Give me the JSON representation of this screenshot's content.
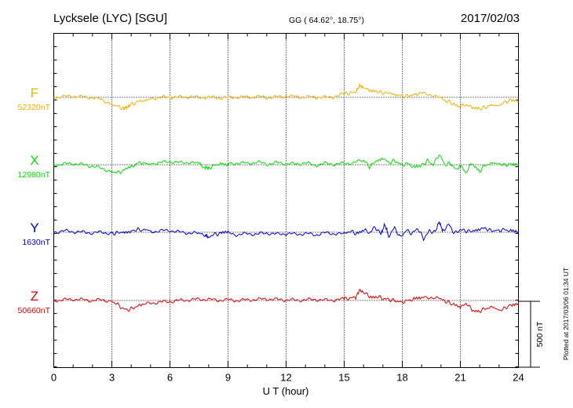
{
  "header": {
    "station": "Lycksele (LYC)  [SGU]",
    "coords": "GG ( 64.62°,  18.75°)",
    "date": "2017/02/03"
  },
  "footer": {
    "plotted_note": "Plotted at 2017/03/06 01:34 UT"
  },
  "scale_bar": {
    "label": "500 nT",
    "value_nT": 500
  },
  "colors": {
    "F": "#f0b000",
    "X": "#00e000",
    "Y": "#0000d0",
    "Z": "#e00000",
    "axes": "#000000"
  },
  "chart_data": {
    "type": "line",
    "title": "Lycksele (LYC)  [SGU]",
    "xlabel": "U T (hour)",
    "ylabel": "",
    "xlim": [
      0,
      24
    ],
    "xticks": [
      "0",
      "3",
      "6",
      "9",
      "12",
      "15",
      "18",
      "21",
      "24"
    ],
    "grid": true,
    "series": [
      {
        "name": "F",
        "baseline_label": "52320nT",
        "baseline_nT": 52320,
        "x": [
          0,
          0.5,
          1,
          1.5,
          2,
          2.5,
          3,
          3.3,
          3.6,
          3.8,
          4,
          4.3,
          4.6,
          5,
          5.5,
          6,
          6.5,
          7,
          7.5,
          8,
          8.5,
          9,
          9.5,
          10,
          10.5,
          11,
          11.5,
          12,
          12.5,
          13,
          13.5,
          14,
          14.5,
          15,
          15.3,
          15.6,
          15.8,
          16,
          16.3,
          16.7,
          17,
          17.3,
          17.7,
          18,
          18.3,
          18.7,
          19,
          19.5,
          20,
          20.3,
          20.6,
          21,
          21.3,
          21.6,
          22,
          22.3,
          22.6,
          23,
          23.3,
          23.6,
          24
        ],
        "y": [
          52320,
          52325,
          52330,
          52322,
          52318,
          52300,
          52270,
          52250,
          52235,
          52245,
          52265,
          52285,
          52300,
          52312,
          52318,
          52322,
          52320,
          52325,
          52318,
          52320,
          52315,
          52318,
          52322,
          52320,
          52325,
          52318,
          52322,
          52328,
          52325,
          52320,
          52322,
          52318,
          52325,
          52345,
          52352,
          52360,
          52410,
          52390,
          52375,
          52360,
          52355,
          52350,
          52340,
          52328,
          52330,
          52345,
          52350,
          52340,
          52310,
          52290,
          52275,
          52250,
          52265,
          52240,
          52230,
          52245,
          52260,
          52262,
          52282,
          52300,
          52285
        ]
      },
      {
        "name": "X",
        "baseline_label": "12980nT",
        "baseline_nT": 12980,
        "x": [
          0,
          0.5,
          1,
          1.5,
          2,
          2.5,
          3,
          3.3,
          3.6,
          4,
          4.3,
          4.6,
          5,
          5.5,
          6,
          6.5,
          7,
          7.5,
          7.8,
          8,
          8.3,
          8.6,
          9,
          9.5,
          10,
          10.5,
          11,
          11.5,
          12,
          12.5,
          13,
          13.5,
          14,
          14.5,
          15,
          15.5,
          16,
          16.3,
          16.6,
          17,
          17.3,
          17.6,
          18,
          18.3,
          18.6,
          19,
          19.3,
          19.6,
          19.9,
          20.2,
          20.5,
          20.8,
          21,
          21.3,
          21.6,
          22,
          22.3,
          22.6,
          23,
          23.3,
          23.6,
          24
        ],
        "y": [
          12980,
          12985,
          12990,
          12980,
          12970,
          12950,
          12930,
          12920,
          12935,
          12960,
          12990,
          13000,
          12990,
          12995,
          13005,
          12995,
          13000,
          12985,
          12960,
          12955,
          12975,
          12990,
          12985,
          12995,
          12990,
          13000,
          12985,
          12995,
          12990,
          12985,
          12995,
          12975,
          12990,
          12985,
          12990,
          12995,
          13015,
          12965,
          13000,
          13030,
          12995,
          13010,
          12980,
          12990,
          12960,
          12975,
          13010,
          12980,
          13060,
          12980,
          12990,
          12940,
          12970,
          12920,
          12995,
          12930,
          12980,
          12985,
          12990,
          12975,
          12990,
          12985
        ]
      },
      {
        "name": "Y",
        "baseline_label": "1630nT",
        "baseline_nT": 1630,
        "x": [
          0,
          0.5,
          1,
          1.5,
          2,
          2.5,
          3,
          3.3,
          3.6,
          4,
          4.3,
          4.6,
          5,
          5.5,
          6,
          6.5,
          7,
          7.5,
          7.8,
          8,
          8.3,
          8.6,
          9,
          9.5,
          10,
          10.5,
          11,
          11.5,
          12,
          12.5,
          13,
          13.5,
          14,
          14.5,
          15,
          15.3,
          15.6,
          16,
          16.3,
          16.6,
          16.9,
          17.1,
          17.3,
          17.6,
          17.9,
          18.2,
          18.5,
          18.8,
          19.1,
          19.4,
          19.7,
          19.9,
          20.1,
          20.4,
          20.7,
          21,
          21.3,
          21.6,
          22,
          22.3,
          22.6,
          23,
          23.3,
          23.6,
          24
        ],
        "y": [
          1630,
          1640,
          1635,
          1630,
          1625,
          1630,
          1620,
          1625,
          1635,
          1640,
          1650,
          1645,
          1635,
          1640,
          1645,
          1630,
          1625,
          1620,
          1610,
          1595,
          1615,
          1620,
          1625,
          1610,
          1620,
          1615,
          1625,
          1615,
          1620,
          1615,
          1620,
          1610,
          1625,
          1620,
          1615,
          1640,
          1620,
          1650,
          1625,
          1670,
          1615,
          1690,
          1600,
          1665,
          1590,
          1645,
          1620,
          1660,
          1580,
          1640,
          1630,
          1710,
          1640,
          1690,
          1620,
          1650,
          1640,
          1635,
          1655,
          1660,
          1640,
          1645,
          1650,
          1640,
          1635
        ]
      },
      {
        "name": "Z",
        "baseline_label": "50660nT",
        "baseline_nT": 50660,
        "x": [
          0,
          0.5,
          1,
          1.5,
          2,
          2.5,
          3,
          3.3,
          3.6,
          3.9,
          4.2,
          4.5,
          5,
          5.5,
          6,
          6.5,
          7,
          7.5,
          8,
          8.5,
          9,
          9.5,
          10,
          10.5,
          11,
          11.5,
          12,
          12.5,
          13,
          13.5,
          14,
          14.5,
          15,
          15.3,
          15.6,
          15.8,
          16,
          16.3,
          16.7,
          17,
          17.3,
          17.6,
          18,
          18.3,
          18.6,
          19,
          19.5,
          20,
          20.3,
          20.6,
          21,
          21.3,
          21.6,
          22,
          22.3,
          22.6,
          23,
          23.3,
          23.6,
          24
        ],
        "y": [
          50660,
          50665,
          50670,
          50665,
          50660,
          50665,
          50655,
          50630,
          50595,
          50590,
          50610,
          50625,
          50640,
          50648,
          50652,
          50660,
          50665,
          50670,
          50668,
          50662,
          50665,
          50660,
          50665,
          50668,
          50672,
          50668,
          50665,
          50662,
          50665,
          50668,
          50662,
          50665,
          50670,
          50678,
          50685,
          50740,
          50720,
          50695,
          50690,
          50675,
          50668,
          50660,
          50650,
          50660,
          50670,
          50680,
          50685,
          50670,
          50650,
          50630,
          50605,
          50640,
          50590,
          50580,
          50600,
          50605,
          50585,
          50600,
          50630,
          50640
        ]
      }
    ]
  }
}
